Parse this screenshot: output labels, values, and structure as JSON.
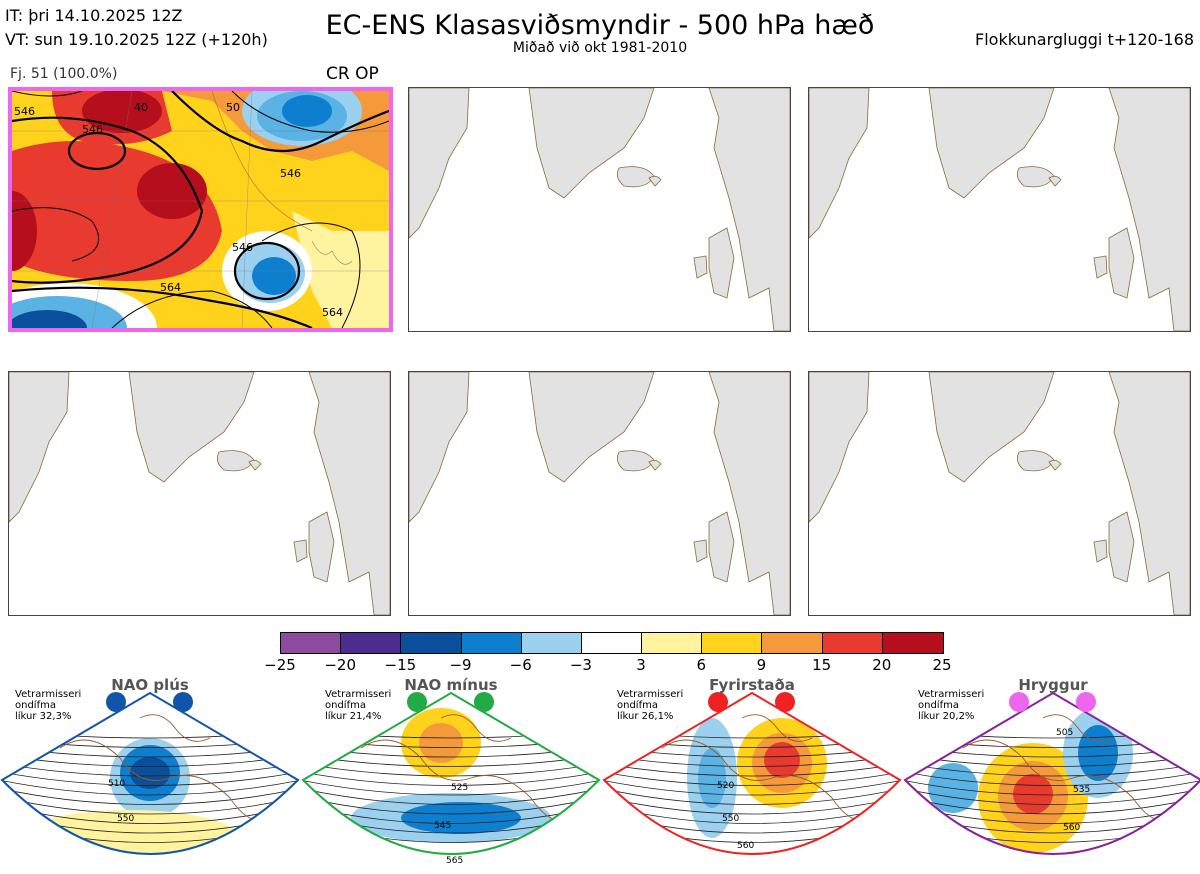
{
  "header": {
    "init_time": "IT: þri 14.10.2025 12Z",
    "valid_time": "VT: sun 19.10.2025 12Z  (+120h)",
    "title": "EC-ENS Klasasviðsmyndir - 500 hPa hæð",
    "subtitle": "Miðað við okt 1981-2010",
    "window": "Flokkunargluggi t+120-168"
  },
  "cluster_panel": {
    "label": "Fj. 51 (100.0%)",
    "tag": "CR OP",
    "contour_labels": [
      "546",
      "546",
      "546",
      "564",
      "546",
      "564",
      "40",
      "50"
    ]
  },
  "colorbar": {
    "labels": [
      "−25",
      "−20",
      "−15",
      "−9",
      "−6",
      "−3",
      "3",
      "6",
      "9",
      "15",
      "20",
      "25"
    ],
    "colors": [
      "#8e4a9e",
      "#4b2d8f",
      "#0a4f9c",
      "#0e7fcf",
      "#5ab2e5",
      "#9bd0ef",
      "#ffffff",
      "#fff3a0",
      "#ffd21c",
      "#f59a3a",
      "#e83a2e",
      "#b50f1e"
    ]
  },
  "regimes": [
    {
      "title": "NAO plús",
      "note": "Vetrarmisseri\nondífma\nlíkur 32,3%",
      "color": "#1155aa",
      "contour_labels": [
        "510",
        "550"
      ]
    },
    {
      "title": "NAO mínus",
      "note": "Vetrarmisseri\nondífma\nlíkur 21,4%",
      "color": "#22aa44",
      "contour_labels": [
        "525",
        "545",
        "565"
      ]
    },
    {
      "title": "Fyrirstaða",
      "note": "Vetrarmisseri\nondífma\nlíkur 26,1%",
      "color": "#ee2222",
      "contour_labels": [
        "520",
        "550",
        "560"
      ]
    },
    {
      "title": "Hryggur",
      "note": "Vetrarmisseri\nondífma\nlíkur 20,2%",
      "color": "#882299",
      "contour_labels": [
        "505",
        "535",
        "560"
      ]
    }
  ]
}
